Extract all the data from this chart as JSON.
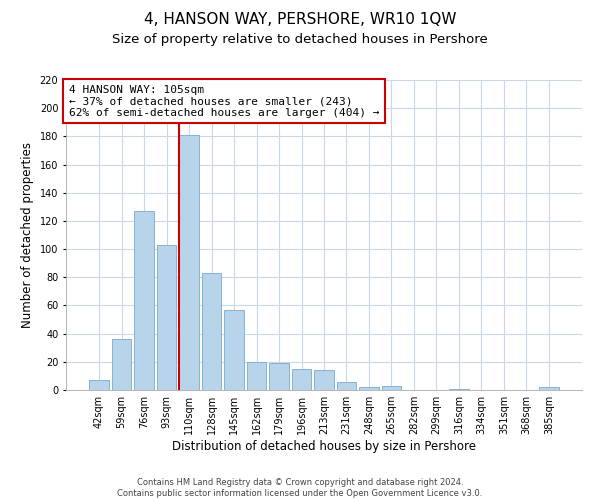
{
  "title": "4, HANSON WAY, PERSHORE, WR10 1QW",
  "subtitle": "Size of property relative to detached houses in Pershore",
  "xlabel": "Distribution of detached houses by size in Pershore",
  "ylabel": "Number of detached properties",
  "bar_labels": [
    "42sqm",
    "59sqm",
    "76sqm",
    "93sqm",
    "110sqm",
    "128sqm",
    "145sqm",
    "162sqm",
    "179sqm",
    "196sqm",
    "213sqm",
    "231sqm",
    "248sqm",
    "265sqm",
    "282sqm",
    "299sqm",
    "316sqm",
    "334sqm",
    "351sqm",
    "368sqm",
    "385sqm"
  ],
  "bar_values": [
    7,
    36,
    127,
    103,
    181,
    83,
    57,
    20,
    19,
    15,
    14,
    6,
    2,
    3,
    0,
    0,
    1,
    0,
    0,
    0,
    2
  ],
  "bar_color": "#b8d4ea",
  "bar_edge_color": "#7aaacb",
  "grid_color": "#c8d8e8",
  "vline_x_index": 4,
  "vline_color": "#cc0000",
  "annotation_line1": "4 HANSON WAY: 105sqm",
  "annotation_line2": "← 37% of detached houses are smaller (243)",
  "annotation_line3": "62% of semi-detached houses are larger (404) →",
  "annotation_box_color": "#ffffff",
  "annotation_box_edge": "#cc0000",
  "ylim": [
    0,
    220
  ],
  "yticks": [
    0,
    20,
    40,
    60,
    80,
    100,
    120,
    140,
    160,
    180,
    200,
    220
  ],
  "footer1": "Contains HM Land Registry data © Crown copyright and database right 2024.",
  "footer2": "Contains public sector information licensed under the Open Government Licence v3.0.",
  "bg_color": "#ffffff",
  "title_fontsize": 11,
  "subtitle_fontsize": 9.5,
  "tick_fontsize": 7,
  "ylabel_fontsize": 8.5,
  "xlabel_fontsize": 8.5,
  "annotation_fontsize": 8
}
